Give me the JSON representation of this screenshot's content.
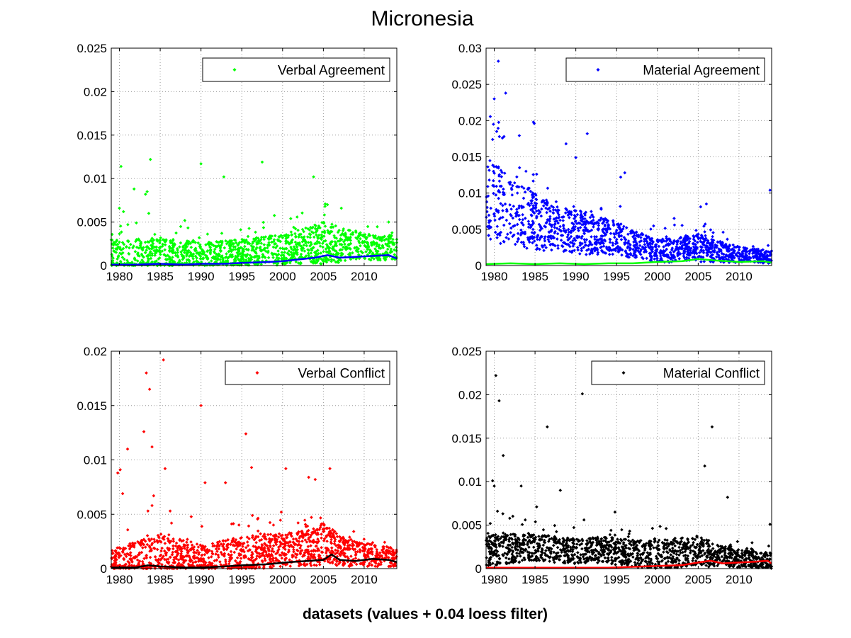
{
  "figure": {
    "title": "Micronesia",
    "xlabel": "datasets (values + 0.04 loess filter)"
  },
  "chart_data": [
    {
      "type": "scatter",
      "legend": "Verbal Agreement",
      "legend_position": "top-right",
      "grid": true,
      "xlim": [
        1979,
        2014
      ],
      "ylim": [
        0,
        0.025
      ],
      "xticks": [
        1980,
        1985,
        1990,
        1995,
        2000,
        2005,
        2010
      ],
      "yticks": [
        "0",
        "0.005",
        "0.01",
        "0.015",
        "0.02",
        "0.025"
      ],
      "point_color": "#00ff00",
      "trend_color": "#0000ff",
      "baseline": [
        [
          1979,
          0.0008
        ],
        [
          1985,
          0.0012
        ],
        [
          1990,
          0.0011
        ],
        [
          1995,
          0.0014
        ],
        [
          2000,
          0.0018
        ],
        [
          2005,
          0.0026
        ],
        [
          2010,
          0.0022
        ],
        [
          2014,
          0.002
        ]
      ],
      "spread": [
        [
          1979,
          0.0022
        ],
        [
          1985,
          0.002
        ],
        [
          1990,
          0.0016
        ],
        [
          1995,
          0.0016
        ],
        [
          2000,
          0.0018
        ],
        [
          2005,
          0.0024
        ],
        [
          2010,
          0.0016
        ],
        [
          2014,
          0.0014
        ]
      ],
      "outliers": [
        [
          1980.2,
          0.0114
        ],
        [
          1983.8,
          0.0122
        ],
        [
          1981.8,
          0.0088
        ],
        [
          1983.4,
          0.0085
        ],
        [
          1983.2,
          0.0082
        ],
        [
          1990.0,
          0.0117
        ],
        [
          1992.8,
          0.0102
        ],
        [
          1997.5,
          0.0119
        ],
        [
          2003.8,
          0.0102
        ],
        [
          1980.0,
          0.0066
        ],
        [
          1980.5,
          0.0062
        ],
        [
          1983.6,
          0.006
        ],
        [
          2001.0,
          0.0054
        ],
        [
          2005.5,
          0.007
        ],
        [
          2005.2,
          0.0068
        ],
        [
          2013.0,
          0.005
        ]
      ],
      "trend": [
        [
          1979,
          0.0001
        ],
        [
          1982,
          0.0001
        ],
        [
          1985,
          0.0002
        ],
        [
          1988,
          0.0001
        ],
        [
          1990,
          0.0002
        ],
        [
          1993,
          0.0002
        ],
        [
          1995,
          0.0003
        ],
        [
          1998,
          0.0004
        ],
        [
          2000,
          0.0005
        ],
        [
          2002,
          0.0007
        ],
        [
          2004,
          0.0009
        ],
        [
          2005.5,
          0.0012
        ],
        [
          2007,
          0.0009
        ],
        [
          2009,
          0.001
        ],
        [
          2011,
          0.0011
        ],
        [
          2013,
          0.0012
        ],
        [
          2014,
          0.0008
        ]
      ]
    },
    {
      "type": "scatter",
      "legend": "Material Agreement",
      "legend_position": "top-right",
      "grid": true,
      "xlim": [
        1979,
        2014
      ],
      "ylim": [
        0,
        0.03
      ],
      "xticks": [
        1980,
        1985,
        1990,
        1995,
        2000,
        2005,
        2010
      ],
      "yticks": [
        "0",
        "0.005",
        "0.01",
        "0.015",
        "0.02",
        "0.025",
        "0.03"
      ],
      "point_color": "#0000ff",
      "trend_color": "#00ff00",
      "baseline": [
        [
          1979,
          0.009
        ],
        [
          1982,
          0.008
        ],
        [
          1985,
          0.006
        ],
        [
          1988,
          0.005
        ],
        [
          1991,
          0.0045
        ],
        [
          1994,
          0.004
        ],
        [
          1997,
          0.003
        ],
        [
          2000,
          0.002
        ],
        [
          2005,
          0.0025
        ],
        [
          2008,
          0.0018
        ],
        [
          2011,
          0.0014
        ],
        [
          2014,
          0.0012
        ]
      ],
      "spread": [
        [
          1979,
          0.006
        ],
        [
          1982,
          0.005
        ],
        [
          1985,
          0.004
        ],
        [
          1988,
          0.003
        ],
        [
          1991,
          0.003
        ],
        [
          1994,
          0.0025
        ],
        [
          1997,
          0.002
        ],
        [
          2000,
          0.0016
        ],
        [
          2005,
          0.002
        ],
        [
          2008,
          0.0014
        ],
        [
          2011,
          0.001
        ],
        [
          2014,
          0.0009
        ]
      ],
      "outliers": [
        [
          1980.5,
          0.0282
        ],
        [
          1980.0,
          0.023
        ],
        [
          1981.4,
          0.0238
        ],
        [
          1979.8,
          0.0174
        ],
        [
          1980.3,
          0.0185
        ],
        [
          1979.9,
          0.0195
        ],
        [
          1981.2,
          0.0178
        ],
        [
          1981.0,
          0.0176
        ],
        [
          1984.8,
          0.0198
        ],
        [
          1984.9,
          0.0196
        ],
        [
          1988.8,
          0.0168
        ],
        [
          1990.0,
          0.0149
        ],
        [
          1991.4,
          0.0182
        ],
        [
          1996.0,
          0.0128
        ],
        [
          1995.5,
          0.0122
        ],
        [
          1983.1,
          0.0135
        ],
        [
          1985.2,
          0.0126
        ],
        [
          2013.8,
          0.0104
        ],
        [
          2006.0,
          0.0085
        ],
        [
          2005.3,
          0.0081
        ]
      ],
      "trend": [
        [
          1979,
          0.0002
        ],
        [
          1982,
          0.0003
        ],
        [
          1985,
          0.0002
        ],
        [
          1988,
          0.0003
        ],
        [
          1991,
          0.0002
        ],
        [
          1994,
          0.0003
        ],
        [
          1997,
          0.0003
        ],
        [
          2000,
          0.0005
        ],
        [
          2003,
          0.0006
        ],
        [
          2005,
          0.0009
        ],
        [
          2007,
          0.0007
        ],
        [
          2010,
          0.0005
        ],
        [
          2013,
          0.0006
        ],
        [
          2014,
          0.0004
        ]
      ]
    },
    {
      "type": "scatter",
      "legend": "Verbal Conflict",
      "legend_position": "top-right",
      "grid": true,
      "xlim": [
        1979,
        2014
      ],
      "ylim": [
        0,
        0.02
      ],
      "xticks": [
        1980,
        1985,
        1990,
        1995,
        2000,
        2005,
        2010
      ],
      "yticks": [
        "0",
        "0.005",
        "0.01",
        "0.015",
        "0.02"
      ],
      "point_color": "#ff0000",
      "trend_color": "#000000",
      "baseline": [
        [
          1979,
          0.0004
        ],
        [
          1985,
          0.0012
        ],
        [
          1990,
          0.0008
        ],
        [
          1995,
          0.0012
        ],
        [
          1998,
          0.0016
        ],
        [
          2002,
          0.0018
        ],
        [
          2005,
          0.0022
        ],
        [
          2008,
          0.0014
        ],
        [
          2011,
          0.0012
        ],
        [
          2014,
          0.001
        ]
      ],
      "spread": [
        [
          1979,
          0.0015
        ],
        [
          1985,
          0.002
        ],
        [
          1990,
          0.0015
        ],
        [
          1995,
          0.0018
        ],
        [
          1998,
          0.0016
        ],
        [
          2002,
          0.0016
        ],
        [
          2005,
          0.002
        ],
        [
          2008,
          0.0012
        ],
        [
          2011,
          0.001
        ],
        [
          2014,
          0.0009
        ]
      ],
      "outliers": [
        [
          1983.3,
          0.018
        ],
        [
          1983.7,
          0.0165
        ],
        [
          1985.4,
          0.0192
        ],
        [
          1990.0,
          0.015
        ],
        [
          1983.0,
          0.0126
        ],
        [
          1984.0,
          0.0112
        ],
        [
          1995.5,
          0.0124
        ],
        [
          1980.1,
          0.0091
        ],
        [
          1979.8,
          0.0088
        ],
        [
          1981.0,
          0.011
        ],
        [
          1985.6,
          0.0092
        ],
        [
          1990.5,
          0.0079
        ],
        [
          1996.2,
          0.0093
        ],
        [
          2000.4,
          0.0092
        ],
        [
          2005.8,
          0.0092
        ],
        [
          2003.2,
          0.0084
        ],
        [
          1993.0,
          0.0079
        ],
        [
          2004.0,
          0.0082
        ],
        [
          1980.4,
          0.0069
        ],
        [
          1984.2,
          0.0067
        ],
        [
          1984.0,
          0.0058
        ],
        [
          1983.5,
          0.0053
        ]
      ],
      "trend": [
        [
          1979,
          0.0001
        ],
        [
          1982,
          0.0001
        ],
        [
          1983.5,
          0.0003
        ],
        [
          1985,
          0.0002
        ],
        [
          1988,
          0.0001
        ],
        [
          1990,
          0.0001
        ],
        [
          1993,
          0.0002
        ],
        [
          1995,
          0.0003
        ],
        [
          1998,
          0.0004
        ],
        [
          2001,
          0.0006
        ],
        [
          2003,
          0.0007
        ],
        [
          2005,
          0.0008
        ],
        [
          2006,
          0.0013
        ],
        [
          2007,
          0.0008
        ],
        [
          2009,
          0.0007
        ],
        [
          2011,
          0.0009
        ],
        [
          2013,
          0.0008
        ],
        [
          2014,
          0.0006
        ]
      ]
    },
    {
      "type": "scatter",
      "legend": "Material Conflict",
      "legend_position": "top-right",
      "grid": true,
      "xlim": [
        1979,
        2014
      ],
      "ylim": [
        0,
        0.025
      ],
      "xticks": [
        1980,
        1985,
        1990,
        1995,
        2000,
        2005,
        2010
      ],
      "yticks": [
        "0",
        "0.005",
        "0.01",
        "0.015",
        "0.02",
        "0.025"
      ],
      "point_color": "#000000",
      "trend_color": "#ff0000",
      "baseline": [
        [
          1979,
          0.0022
        ],
        [
          1985,
          0.0024
        ],
        [
          1990,
          0.002
        ],
        [
          1993,
          0.0022
        ],
        [
          1996,
          0.0018
        ],
        [
          2000,
          0.0016
        ],
        [
          2005,
          0.002
        ],
        [
          2008,
          0.0014
        ],
        [
          2011,
          0.0011
        ],
        [
          2014,
          0.0009
        ]
      ],
      "spread": [
        [
          1979,
          0.002
        ],
        [
          1985,
          0.0015
        ],
        [
          1990,
          0.0015
        ],
        [
          1993,
          0.0015
        ],
        [
          1996,
          0.0016
        ],
        [
          2000,
          0.0016
        ],
        [
          2005,
          0.0018
        ],
        [
          2008,
          0.0012
        ],
        [
          2011,
          0.001
        ],
        [
          2014,
          0.0009
        ]
      ],
      "outliers": [
        [
          1980.2,
          0.0222
        ],
        [
          1980.6,
          0.0193
        ],
        [
          1990.8,
          0.0201
        ],
        [
          1981.1,
          0.013
        ],
        [
          1986.5,
          0.0163
        ],
        [
          2006.7,
          0.0163
        ],
        [
          2005.8,
          0.0118
        ],
        [
          1979.8,
          0.0101
        ],
        [
          1980.0,
          0.0095
        ],
        [
          1983.3,
          0.0095
        ],
        [
          1988.1,
          0.009
        ],
        [
          2008.6,
          0.0082
        ],
        [
          1980.4,
          0.0066
        ],
        [
          1981.5,
          0.0037
        ],
        [
          1985.2,
          0.0071
        ],
        [
          1991.0,
          0.0056
        ],
        [
          1983.8,
          0.0056
        ],
        [
          1994.8,
          0.0065
        ],
        [
          2013.8,
          0.0051
        ]
      ],
      "trend": [
        [
          1979,
          0.0001
        ],
        [
          1982,
          0.0001
        ],
        [
          1985,
          0.0001
        ],
        [
          1988,
          0.0001
        ],
        [
          1991,
          0.0001
        ],
        [
          1994,
          0.0001
        ],
        [
          1997,
          0.0002
        ],
        [
          2000,
          0.0003
        ],
        [
          2003,
          0.0004
        ],
        [
          2005,
          0.0007
        ],
        [
          2006.5,
          0.0009
        ],
        [
          2008,
          0.0006
        ],
        [
          2010,
          0.0007
        ],
        [
          2012,
          0.0008
        ],
        [
          2013.5,
          0.0009
        ],
        [
          2014,
          0.0006
        ]
      ]
    }
  ]
}
